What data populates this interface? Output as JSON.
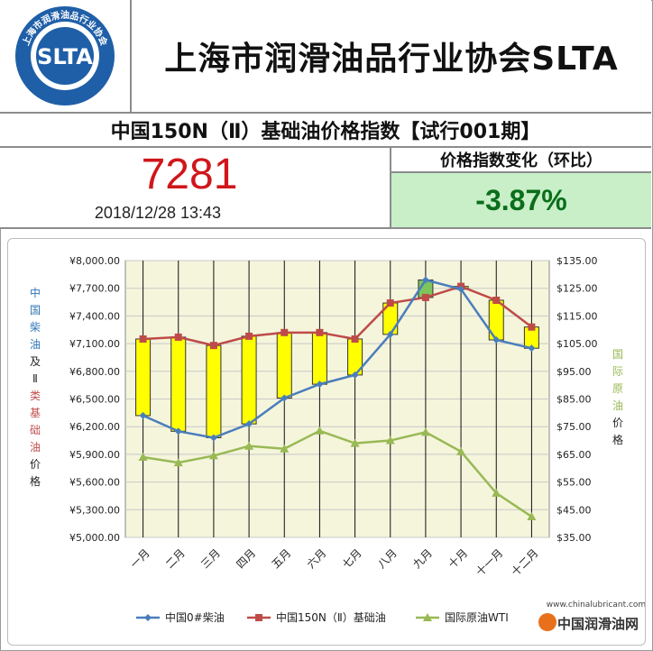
{
  "header": {
    "logo_text": "SLTA",
    "logo_ring_text": "上海市润滑油品行业协会",
    "title": "上海市润滑油品行业协会SLTA"
  },
  "index_panel": {
    "subtitle": "中国150N（Ⅱ）基础油价格指数【试行001期】",
    "value": "7281",
    "datetime": "2018/12/28 13:43",
    "change_label": "价格指数变化（环比）",
    "change_value": "-3.87%"
  },
  "colors": {
    "diesel": "#4a7ebb",
    "base_oil": "#be4b48",
    "crude": "#98b954",
    "bar_yellow": "#ffff00",
    "bar_green": "#7dc65b",
    "plot_bg": "#f5f5dc"
  },
  "chart_data": {
    "type": "line",
    "categories": [
      "一月",
      "二月",
      "三月",
      "四月",
      "五月",
      "六月",
      "七月",
      "八月",
      "九月",
      "十月",
      "十一月",
      "十二月"
    ],
    "series": [
      {
        "name": "中国0#柴油",
        "axis": "left",
        "values": [
          6320,
          6150,
          6080,
          6230,
          6510,
          6660,
          6760,
          7200,
          7790,
          7690,
          7140,
          7050
        ]
      },
      {
        "name": "中国150N（Ⅱ）基础油",
        "axis": "left",
        "values": [
          7150,
          7170,
          7080,
          7180,
          7220,
          7220,
          7150,
          7540,
          7600,
          7720,
          7570,
          7280
        ]
      },
      {
        "name": "国际原油WTI",
        "axis": "right",
        "values": [
          64,
          62,
          64.5,
          68,
          67,
          73.5,
          69,
          70,
          73,
          66,
          51,
          42.5
        ]
      }
    ],
    "left_axis": {
      "title": [
        "中",
        "国",
        "柴",
        "油",
        "及",
        "Ⅱ",
        "类",
        "基",
        "础",
        "油",
        "价",
        "格"
      ],
      "ticks": [
        "¥5,000.00",
        "¥5,300.00",
        "¥5,600.00",
        "¥5,900.00",
        "¥6,200.00",
        "¥6,500.00",
        "¥6,800.00",
        "¥7,100.00",
        "¥7,400.00",
        "¥7,700.00",
        "¥8,000.00"
      ],
      "ylim": [
        5000,
        8000
      ]
    },
    "right_axis": {
      "title": [
        "国",
        "际",
        "原",
        "油",
        "价",
        "格"
      ],
      "ticks": [
        "$35.00",
        "$45.00",
        "$55.00",
        "$65.00",
        "$75.00",
        "$85.00",
        "$95.00",
        "$105.00",
        "$115.00",
        "$125.00",
        "$135.00"
      ],
      "ylim": [
        35,
        135
      ]
    },
    "legend_position": "bottom",
    "legend": [
      "中国0#柴油",
      "中国150N（Ⅱ）基础油",
      "国际原油WTI"
    ],
    "watermark": {
      "url": "www.chinalubricant.com",
      "name": "中国润滑油网"
    },
    "grid": true
  }
}
